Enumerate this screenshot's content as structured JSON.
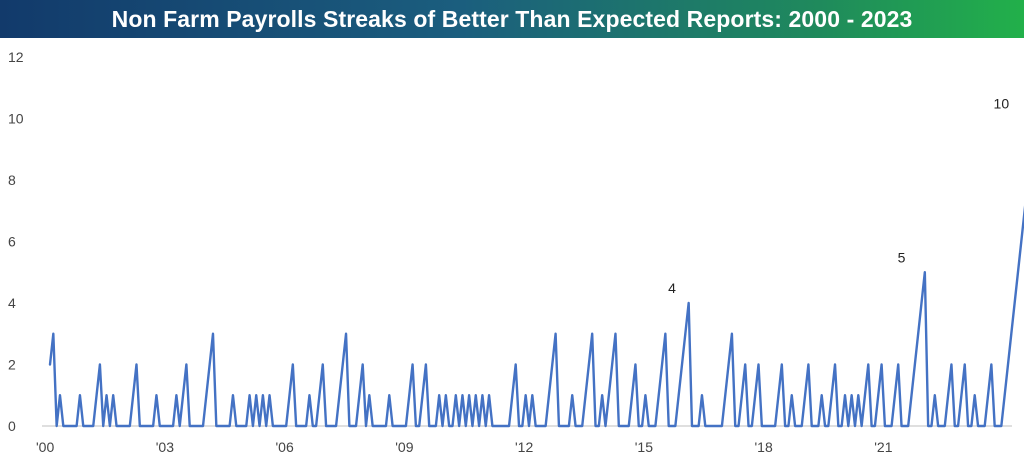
{
  "title": "Non Farm Payrolls Streaks of Better Than Expected Reports: 2000 - 2023",
  "chart_data": {
    "type": "line",
    "title": "Non Farm Payrolls Streaks of Better Than Expected Reports: 2000 - 2023",
    "xlabel": "",
    "ylabel": "",
    "x_tick_labels": [
      "'00",
      "'03",
      "'06",
      "'09",
      "'12",
      "'15",
      "'18",
      "'21"
    ],
    "x_tick_years": [
      2000,
      2003,
      2006,
      2009,
      2012,
      2015,
      2018,
      2021
    ],
    "xlim": [
      2000,
      2023.85
    ],
    "ylim": [
      0,
      12
    ],
    "y_ticks": [
      0,
      2,
      4,
      6,
      8,
      10,
      12
    ],
    "grid": false,
    "legend": "none",
    "line_color": "#4472c4",
    "series": [
      {
        "x_start": 2000.0,
        "x_step_months": 1,
        "values": [
          2,
          3,
          0,
          1,
          0,
          0,
          0,
          0,
          0,
          1,
          0,
          0,
          0,
          0,
          1,
          2,
          0,
          1,
          0,
          1,
          0,
          0,
          0,
          0,
          0,
          1,
          2,
          0,
          0,
          0,
          0,
          0,
          1,
          0,
          0,
          0,
          0,
          0,
          1,
          0,
          1,
          2,
          0,
          0,
          0,
          0,
          0,
          1,
          2,
          3,
          0,
          0,
          0,
          0,
          0,
          1,
          0,
          0,
          0,
          0,
          1,
          0,
          1,
          0,
          1,
          0,
          1,
          0,
          0,
          0,
          0,
          0,
          1,
          2,
          0,
          0,
          0,
          0,
          1,
          0,
          0,
          1,
          2,
          0,
          0,
          0,
          0,
          1,
          2,
          3,
          0,
          0,
          0,
          1,
          2,
          0,
          1,
          0,
          0,
          0,
          0,
          0,
          1,
          0,
          0,
          0,
          0,
          0,
          1,
          2,
          0,
          0,
          1,
          2,
          0,
          0,
          0,
          1,
          0,
          1,
          0,
          0,
          1,
          0,
          1,
          0,
          1,
          0,
          1,
          0,
          1,
          0,
          1,
          0,
          0,
          0,
          0,
          0,
          0,
          1,
          2,
          0,
          0,
          1,
          0,
          1,
          0,
          0,
          0,
          0,
          1,
          2,
          3,
          0,
          0,
          0,
          0,
          1,
          0,
          0,
          0,
          1,
          2,
          3,
          0,
          0,
          1,
          0,
          1,
          2,
          3,
          0,
          0,
          0,
          0,
          1,
          2,
          0,
          0,
          1,
          0,
          0,
          0,
          1,
          2,
          3,
          0,
          0,
          0,
          1,
          2,
          3,
          4,
          0,
          0,
          0,
          1,
          0,
          0,
          0,
          0,
          0,
          0,
          1,
          2,
          3,
          0,
          0,
          1,
          2,
          0,
          0,
          1,
          2,
          0,
          0,
          0,
          0,
          0,
          1,
          2,
          0,
          0,
          1,
          0,
          0,
          0,
          1,
          2,
          0,
          0,
          0,
          1,
          0,
          0,
          1,
          2,
          0,
          0,
          1,
          0,
          1,
          0,
          1,
          0,
          1,
          2,
          0,
          0,
          1,
          2,
          0,
          0,
          0,
          1,
          2,
          0,
          0,
          0,
          1,
          2,
          3,
          4,
          5,
          0,
          0,
          1,
          0,
          0,
          0,
          1,
          2,
          0,
          0,
          1,
          2,
          0,
          0,
          1,
          0,
          0,
          0,
          1,
          2,
          0,
          0,
          0,
          1,
          2,
          3,
          4,
          5,
          6,
          7,
          8,
          9,
          10
        ]
      }
    ],
    "annotations": [
      {
        "x_index": 187,
        "value": 4,
        "label": "4"
      },
      {
        "x_index": 256,
        "value": 5,
        "label": "5"
      },
      {
        "x_index": 286,
        "value": 10,
        "label": "10"
      }
    ]
  }
}
